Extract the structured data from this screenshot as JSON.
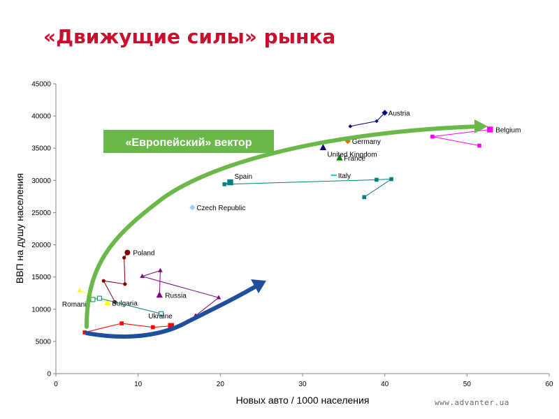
{
  "title": "«Движущие силы» рынка",
  "footer": "www.advanter.ua",
  "badge": "«Европейский» вектор",
  "chart_data": {
    "type": "scatter",
    "xlabel": "Новых авто / 1000 населения",
    "ylabel": "ВВП на душу населения",
    "xlim": [
      0,
      60
    ],
    "ylim": [
      0,
      45000
    ],
    "xticks": [
      "0",
      "10",
      "20",
      "30",
      "40",
      "50",
      "60"
    ],
    "yticks": [
      "0",
      "5000",
      "10000",
      "15000",
      "20000",
      "25000",
      "30000",
      "35000",
      "40000",
      "45000"
    ],
    "grid": false,
    "series": [
      {
        "name": "Austria",
        "color": "#000080",
        "marker": "diamond",
        "points": [
          [
            35.8,
            38400
          ],
          [
            39,
            39200
          ],
          [
            40,
            40500
          ]
        ]
      },
      {
        "name": "Belgium",
        "color": "#ff00ff",
        "marker": "square",
        "points": [
          [
            51.5,
            35400
          ],
          [
            45.8,
            36800
          ],
          [
            52.8,
            37900
          ]
        ]
      },
      {
        "name": "Germany",
        "color": "#ff6600",
        "marker": "diamond",
        "points": [
          [
            35.5,
            36100
          ]
        ]
      },
      {
        "name": "United Kingdom",
        "color": "#000080",
        "marker": "triangle",
        "points": [
          [
            32.5,
            35100
          ]
        ]
      },
      {
        "name": "France",
        "color": "#008000",
        "marker": "triangle",
        "points": [
          [
            34.5,
            33500
          ]
        ]
      },
      {
        "name": "Italy",
        "color": "#33cccc",
        "marker": "dash",
        "points": [
          [
            33.8,
            30800
          ]
        ]
      },
      {
        "name": "Spain",
        "color": "#008080",
        "marker": "square",
        "points": [
          [
            37.5,
            27400
          ],
          [
            40.8,
            30200
          ],
          [
            39,
            30100
          ],
          [
            20.5,
            29400
          ],
          [
            21.2,
            29700
          ]
        ]
      },
      {
        "name": "Czech Republic",
        "color": "#99ccff",
        "marker": "diamond",
        "points": [
          [
            16.6,
            25800
          ]
        ]
      },
      {
        "name": "Poland",
        "color": "#800000",
        "marker": "circle",
        "points": [
          [
            7.2,
            11100
          ],
          [
            5.8,
            14400
          ],
          [
            8.4,
            13900
          ],
          [
            8.3,
            18000
          ],
          [
            8.7,
            18800
          ]
        ]
      },
      {
        "name": "Russia",
        "color": "#800080",
        "marker": "triangle",
        "points": [
          [
            17,
            9000
          ],
          [
            19.8,
            11800
          ],
          [
            10.5,
            15100
          ],
          [
            12.7,
            16000
          ],
          [
            12.6,
            12200
          ]
        ]
      },
      {
        "name": "Bulgaria",
        "color": "#ffff00",
        "marker": "triangle",
        "points": [
          [
            2.9,
            12900
          ],
          [
            6.3,
            11000
          ]
        ]
      },
      {
        "name": "Romania",
        "color": "#008080",
        "marker": "square-open",
        "points": [
          [
            12.8,
            9300
          ],
          [
            5.3,
            11700
          ],
          [
            4.5,
            11500
          ]
        ]
      },
      {
        "name": "Ukraine",
        "color": "#ff0000",
        "marker": "square",
        "points": [
          [
            3.5,
            6400
          ],
          [
            8,
            7800
          ],
          [
            11.8,
            7200
          ],
          [
            14,
            7400
          ]
        ]
      }
    ]
  }
}
